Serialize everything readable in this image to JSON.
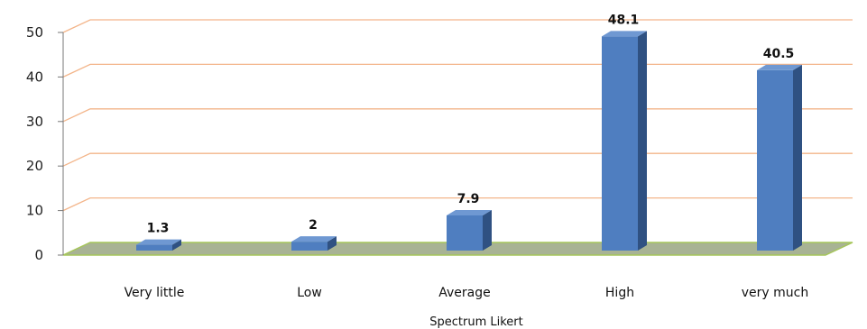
{
  "chart_data": {
    "type": "bar",
    "style": "3d-column",
    "categories": [
      "Very little",
      "Low",
      "Average",
      "High",
      "very much"
    ],
    "values": [
      1.3,
      2,
      7.9,
      48.1,
      40.5
    ],
    "data_labels": [
      "1.3",
      "2",
      "7.9",
      "48.1",
      "40.5"
    ],
    "xlabel": "Spectrum Likert",
    "ylabel": "",
    "ylim": [
      0,
      50
    ],
    "yticks": [
      0,
      10,
      20,
      30,
      40,
      50
    ],
    "grid": true,
    "legend": "none",
    "colors": {
      "bar_front": "#4f7ec0",
      "bar_side": "#2f5182",
      "bar_top": "#6f98d2",
      "gridline": "#f3b58a",
      "floor": "#a8b394",
      "floor_edge": "#a6c65a"
    }
  }
}
